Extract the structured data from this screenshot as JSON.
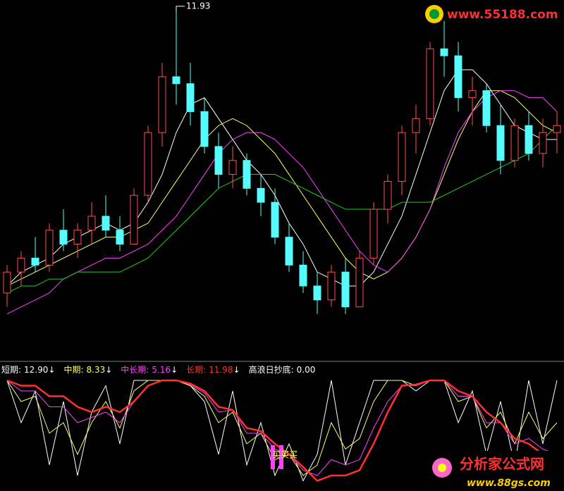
{
  "chart_data": [
    {
      "type": "candlestick",
      "high_label": 11.93,
      "open": [
        7.9,
        8.2,
        8.4,
        8.3,
        8.8,
        8.6,
        8.8,
        9.0,
        8.8,
        8.6,
        9.3,
        10.2,
        11.0,
        10.9,
        10.5,
        10.0,
        9.6,
        9.8,
        9.4,
        9.2,
        8.7,
        8.3,
        8.0,
        7.8,
        8.2,
        7.7,
        8.4,
        9.1,
        9.5,
        10.2,
        10.4,
        11.4,
        11.3,
        10.7,
        10.8,
        10.3,
        9.8,
        10.3,
        9.9,
        10.2
      ],
      "high": [
        8.3,
        8.5,
        8.7,
        8.9,
        9.1,
        8.9,
        9.2,
        9.3,
        9.0,
        9.4,
        10.3,
        11.2,
        11.93,
        11.2,
        10.7,
        10.2,
        10.0,
        9.9,
        9.6,
        9.4,
        8.9,
        8.5,
        8.2,
        8.3,
        8.4,
        8.5,
        9.2,
        9.6,
        10.3,
        10.6,
        11.5,
        11.8,
        11.5,
        11.0,
        10.9,
        10.6,
        10.4,
        10.5,
        10.4,
        10.5
      ],
      "low": [
        7.7,
        8.0,
        8.2,
        8.2,
        8.5,
        8.4,
        8.6,
        8.7,
        8.5,
        8.6,
        9.2,
        10.0,
        10.6,
        10.3,
        9.9,
        9.4,
        9.4,
        9.3,
        9.0,
        8.6,
        8.2,
        7.9,
        7.6,
        7.7,
        7.6,
        7.7,
        8.3,
        8.9,
        9.3,
        9.9,
        10.3,
        11.0,
        10.5,
        10.3,
        10.2,
        9.6,
        9.7,
        9.8,
        9.7,
        9.9
      ],
      "close": [
        8.2,
        8.4,
        8.3,
        8.8,
        8.6,
        8.8,
        9.0,
        8.8,
        8.6,
        9.3,
        10.2,
        11.0,
        10.9,
        10.5,
        10.0,
        9.6,
        9.8,
        9.4,
        9.2,
        8.7,
        8.3,
        8.0,
        7.8,
        8.2,
        7.7,
        8.4,
        9.1,
        9.5,
        10.2,
        10.4,
        11.4,
        11.3,
        10.7,
        10.8,
        10.3,
        9.8,
        10.3,
        9.9,
        10.2,
        10.3
      ],
      "up_color": "#ff5050",
      "down_color": "#54fcfc",
      "ylim": [
        7.0,
        12.1
      ],
      "series": [
        {
          "color": "#ffffff",
          "values": [
            8.0,
            8.2,
            8.3,
            8.4,
            8.6,
            8.7,
            8.8,
            8.9,
            8.8,
            8.9,
            9.2,
            9.6,
            10.2,
            10.6,
            10.7,
            10.4,
            10.1,
            9.8,
            9.6,
            9.3,
            8.9,
            8.6,
            8.2,
            8.1,
            8.0,
            8.0,
            8.2,
            8.6,
            9.0,
            9.6,
            10.2,
            10.8,
            11.1,
            11.1,
            10.9,
            10.6,
            10.3,
            10.2,
            10.1,
            10.1
          ]
        },
        {
          "color": "#ffff66",
          "values": [
            8.0,
            8.1,
            8.2,
            8.3,
            8.4,
            8.5,
            8.6,
            8.7,
            8.7,
            8.8,
            8.9,
            9.2,
            9.5,
            9.8,
            10.1,
            10.3,
            10.4,
            10.3,
            10.1,
            9.9,
            9.6,
            9.3,
            9.0,
            8.7,
            8.4,
            8.2,
            8.1,
            8.2,
            8.4,
            8.7,
            9.1,
            9.6,
            10.1,
            10.5,
            10.8,
            10.8,
            10.7,
            10.5,
            10.3,
            10.2
          ]
        },
        {
          "color": "#ff40ff",
          "values": [
            7.6,
            7.7,
            7.8,
            7.9,
            8.1,
            8.2,
            8.3,
            8.4,
            8.4,
            8.5,
            8.6,
            8.8,
            9.0,
            9.3,
            9.6,
            9.9,
            10.1,
            10.2,
            10.2,
            10.1,
            9.9,
            9.7,
            9.4,
            9.1,
            8.8,
            8.5,
            8.3,
            8.2,
            8.4,
            8.7,
            9.1,
            9.7,
            10.2,
            10.5,
            10.7,
            10.8,
            10.8,
            10.7,
            10.7,
            10.5
          ]
        },
        {
          "color": "#22cc22",
          "values": [
            7.9,
            8.0,
            8.0,
            8.1,
            8.1,
            8.2,
            8.2,
            8.2,
            8.2,
            8.3,
            8.4,
            8.6,
            8.8,
            9.0,
            9.2,
            9.4,
            9.5,
            9.6,
            9.6,
            9.6,
            9.5,
            9.4,
            9.3,
            9.2,
            9.1,
            9.1,
            9.1,
            9.1,
            9.2,
            9.2,
            9.2,
            9.3,
            9.4,
            9.5,
            9.6,
            9.7,
            9.8,
            9.9,
            10.1,
            10.3
          ]
        }
      ]
    },
    {
      "type": "line",
      "legend": [
        {
          "label": "短期:",
          "value": 12.9,
          "value_label": "12.90",
          "arrow": "↓",
          "color": "#ffffff"
        },
        {
          "label": "中期:",
          "value": 8.33,
          "value_label": "8.33",
          "arrow": "↓",
          "color": "#ffff66"
        },
        {
          "label": "中长期:",
          "value": 5.16,
          "value_label": "5.16",
          "arrow": "↓",
          "color": "#ff40ff"
        },
        {
          "label": "长期:",
          "value": 11.98,
          "value_label": "11.98",
          "arrow": "↓",
          "color": "#ff3030"
        },
        {
          "label": "高浪日抄底:",
          "value": 0.0,
          "value_label": "0.00",
          "color": "#ffffff"
        }
      ],
      "signal_text": "买买买",
      "ylim": [
        0,
        100
      ],
      "series": [
        {
          "name": "短期",
          "color": "#ffffff",
          "values": [
            100,
            60,
            90,
            20,
            80,
            10,
            70,
            95,
            40,
            100,
            100,
            100,
            100,
            95,
            80,
            30,
            90,
            20,
            60,
            10,
            40,
            5,
            30,
            100,
            20,
            60,
            100,
            100,
            100,
            90,
            100,
            100,
            60,
            90,
            30,
            80,
            20,
            100,
            40,
            100
          ]
        },
        {
          "name": "中期",
          "color": "#ffff66",
          "values": [
            100,
            80,
            85,
            50,
            60,
            30,
            60,
            80,
            55,
            90,
            100,
            100,
            100,
            95,
            85,
            60,
            70,
            40,
            50,
            25,
            30,
            10,
            20,
            60,
            35,
            45,
            80,
            100,
            100,
            95,
            100,
            100,
            80,
            85,
            55,
            70,
            40,
            70,
            45,
            60
          ]
        },
        {
          "name": "中长期",
          "color": "#ff40ff",
          "values": [
            100,
            90,
            90,
            75,
            75,
            60,
            65,
            70,
            60,
            80,
            95,
            100,
            100,
            96,
            88,
            70,
            72,
            50,
            50,
            35,
            30,
            15,
            10,
            25,
            20,
            25,
            55,
            80,
            95,
            95,
            100,
            100,
            85,
            85,
            60,
            60,
            40,
            45,
            35,
            30
          ]
        },
        {
          "name": "长期",
          "color": "#ff3030",
          "values": [
            100,
            95,
            95,
            85,
            85,
            75,
            70,
            75,
            70,
            80,
            95,
            100,
            100,
            97,
            90,
            75,
            72,
            55,
            52,
            40,
            30,
            18,
            5,
            10,
            10,
            15,
            40,
            70,
            95,
            96,
            100,
            100,
            90,
            85,
            70,
            60,
            45,
            40,
            30,
            25
          ]
        }
      ]
    }
  ],
  "watermarks": {
    "top": "www.55188.com",
    "bottom_title": "分析家公式网",
    "bottom_url": "www.88gs.com"
  }
}
